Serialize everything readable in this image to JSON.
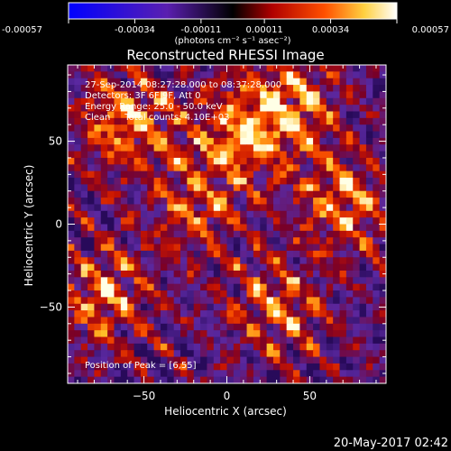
{
  "colorbar": {
    "tick_labels": [
      "-0.00057",
      "-0.00034",
      "-0.00011",
      "0.00011",
      "0.00034",
      "0.00057"
    ],
    "tick_values": [
      -0.00057,
      -0.00034,
      -0.00011,
      0.00011,
      0.00034,
      0.00057
    ],
    "range": [
      -0.00057,
      0.00057
    ],
    "units_label": "(photons cm⁻² s⁻¹ asec⁻²)"
  },
  "chart_data": {
    "type": "heatmap",
    "title": "Reconstructed RHESSI Image",
    "xlabel": "Heliocentric X (arcsec)",
    "ylabel": "Heliocentric Y (arcsec)",
    "xlim": [
      -96,
      96
    ],
    "ylim": [
      -96,
      96
    ],
    "x_ticks": [
      -50,
      0,
      50
    ],
    "y_ticks": [
      -50,
      0,
      50
    ],
    "tick_labels_x": [
      "−50",
      "0",
      "50"
    ],
    "tick_labels_y": [
      "−50",
      "0",
      "50"
    ],
    "grid": false,
    "annotations": [
      "27-Sep-2014 08:27:28.000 to 08:37:28.000",
      "Detectors: 3F 6F 9F, Att 0",
      "Energy Range: 25.0 - 50.0 keV",
      "Clean     Total counts: 4.10E+03",
      "Position of Peak = [6,55]"
    ],
    "peak_position": [
      6,
      55
    ],
    "colors": {
      "low": "#0000ff",
      "mid": "#6a20b0",
      "high": "#ffffff",
      "hot": "#ff6000"
    }
  },
  "footer": {
    "timestamp": "20-May-2017 02:42"
  }
}
